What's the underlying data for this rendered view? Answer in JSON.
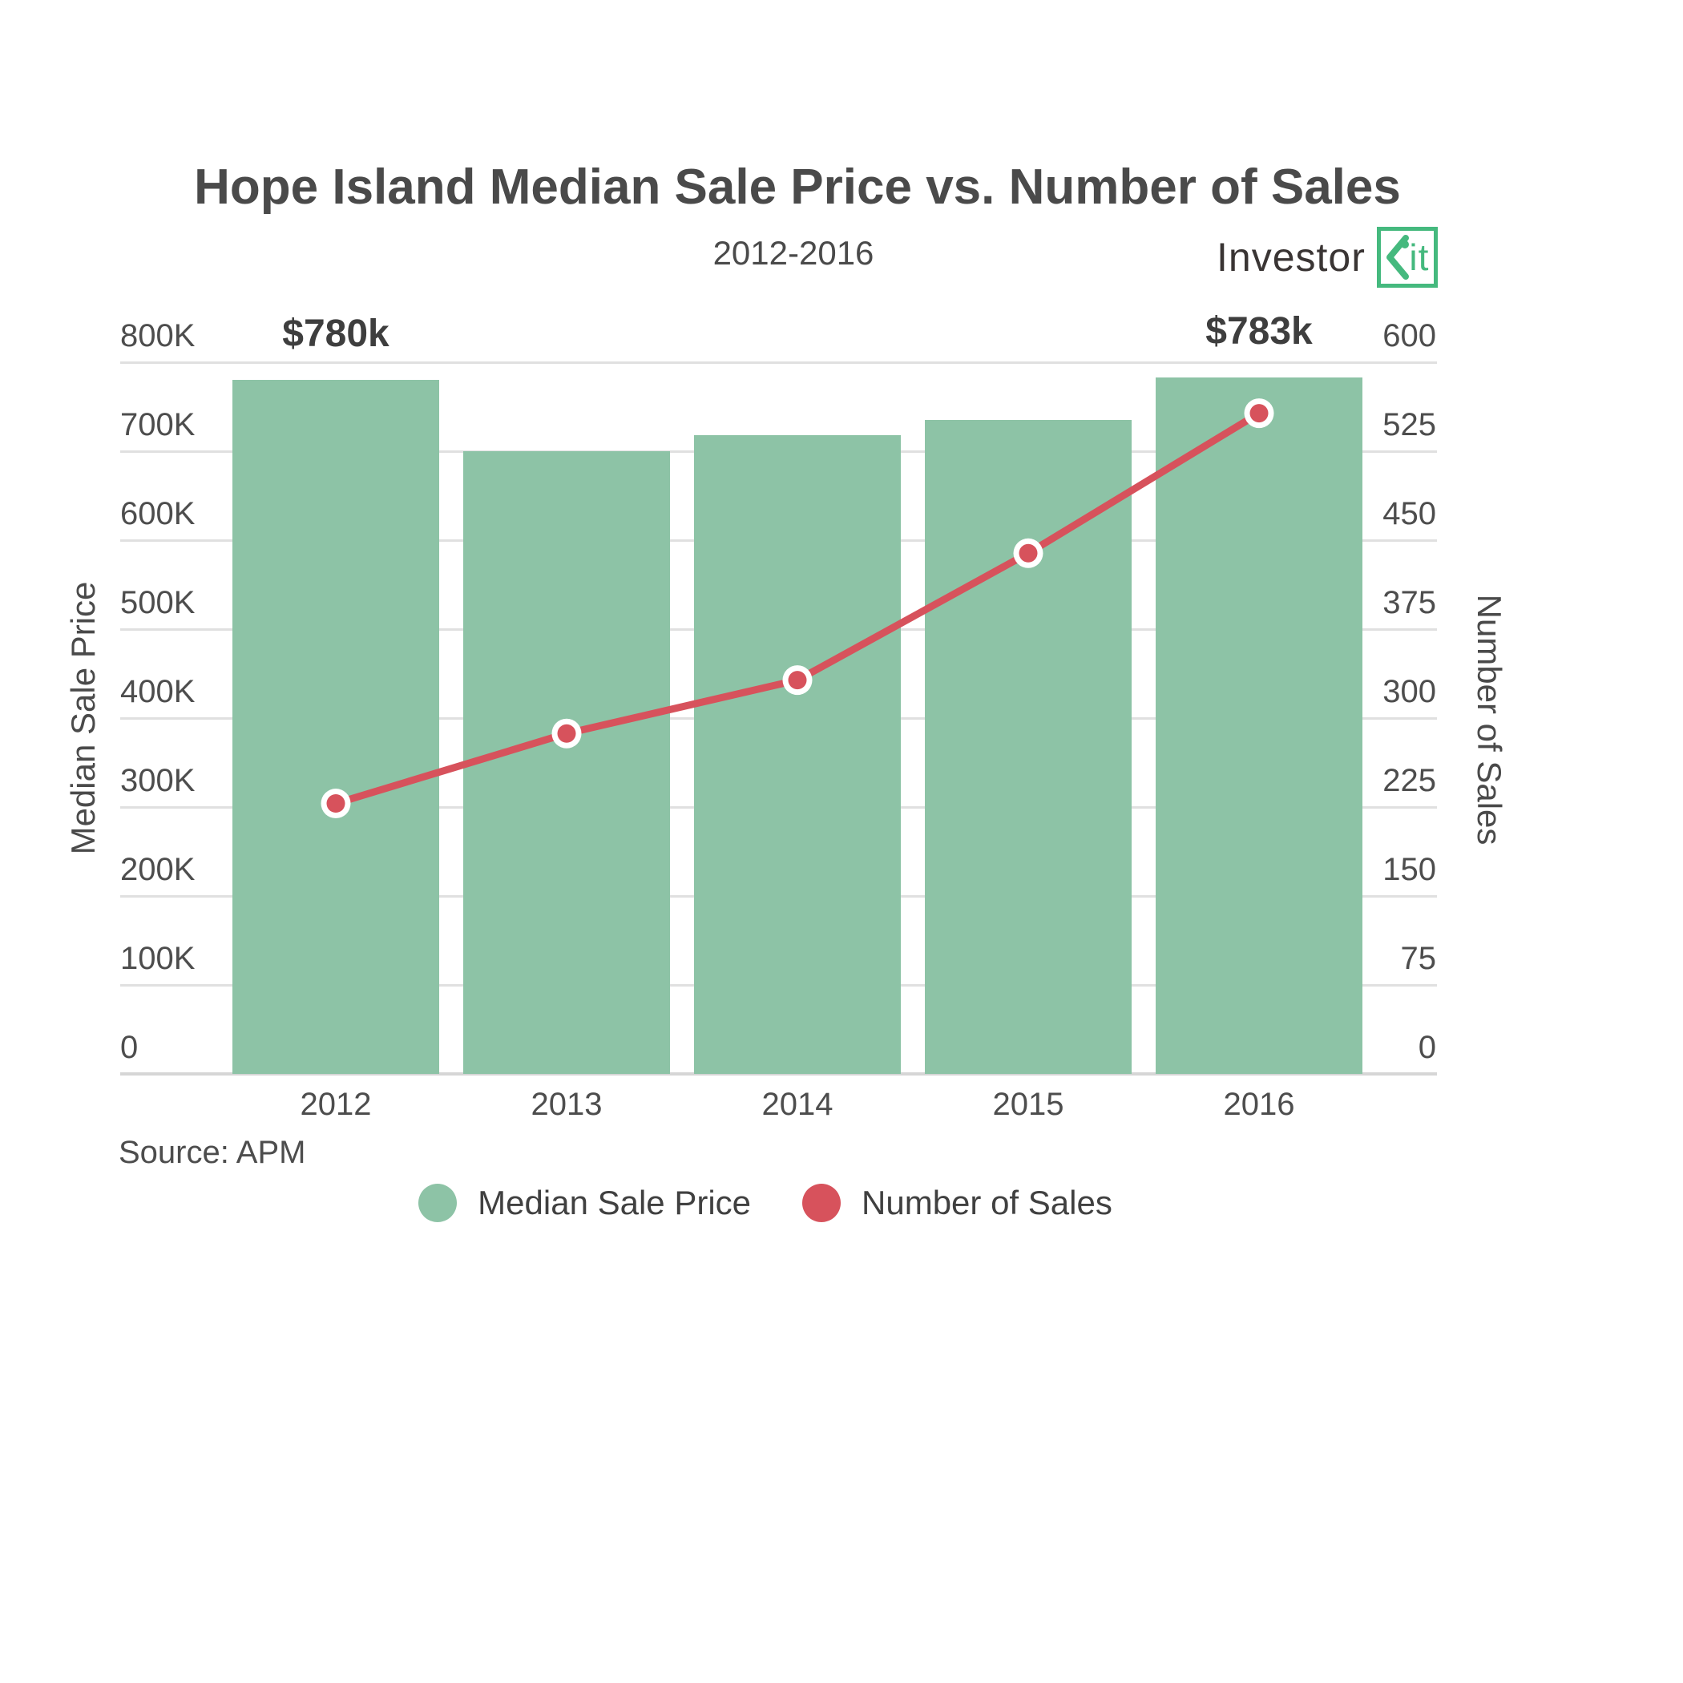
{
  "header": {
    "title": "Hope Island Median Sale Price vs. Number of Sales",
    "subtitle": "2012-2016",
    "logo": {
      "text_primary": "Investor",
      "text_accent_k": "K",
      "text_accent_rest": "it",
      "accent_color": "#45b97e"
    }
  },
  "source": {
    "label": "Source: APM"
  },
  "chart_data": {
    "type": "combo-bar-line",
    "categories": [
      "2012",
      "2013",
      "2014",
      "2015",
      "2016"
    ],
    "series": [
      {
        "name": "Median Sale Price",
        "type": "bar",
        "axis": "left",
        "color": "#8dc3a6",
        "values": [
          780000,
          700000,
          718000,
          735000,
          783000
        ]
      },
      {
        "name": "Number of Sales",
        "type": "line",
        "axis": "right",
        "color": "#d7525c",
        "values": [
          228,
          287,
          332,
          439,
          557
        ]
      }
    ],
    "left_axis": {
      "title": "Median Sale Price",
      "min": 0,
      "max": 800000,
      "tick_step": 100000,
      "tick_labels": [
        "0",
        "100K",
        "200K",
        "300K",
        "400K",
        "500K",
        "600K",
        "700K",
        "800K"
      ]
    },
    "right_axis": {
      "title": "Number of Sales",
      "min": 0,
      "max": 600,
      "tick_step": 75,
      "tick_labels": [
        "0",
        "75",
        "150",
        "225",
        "300",
        "375",
        "450",
        "525",
        "600"
      ]
    },
    "annotations": [
      {
        "category": "2012",
        "text": "$780k"
      },
      {
        "category": "2016",
        "text": "$783k"
      }
    ],
    "legend": [
      {
        "label": "Median Sale Price",
        "color": "#8dc3a6"
      },
      {
        "label": "Number of Sales",
        "color": "#d7525c"
      }
    ],
    "grid": true,
    "legend_position": "bottom",
    "marker": {
      "outer_color": "#ffffff",
      "inner_color": "#d7525c"
    }
  }
}
